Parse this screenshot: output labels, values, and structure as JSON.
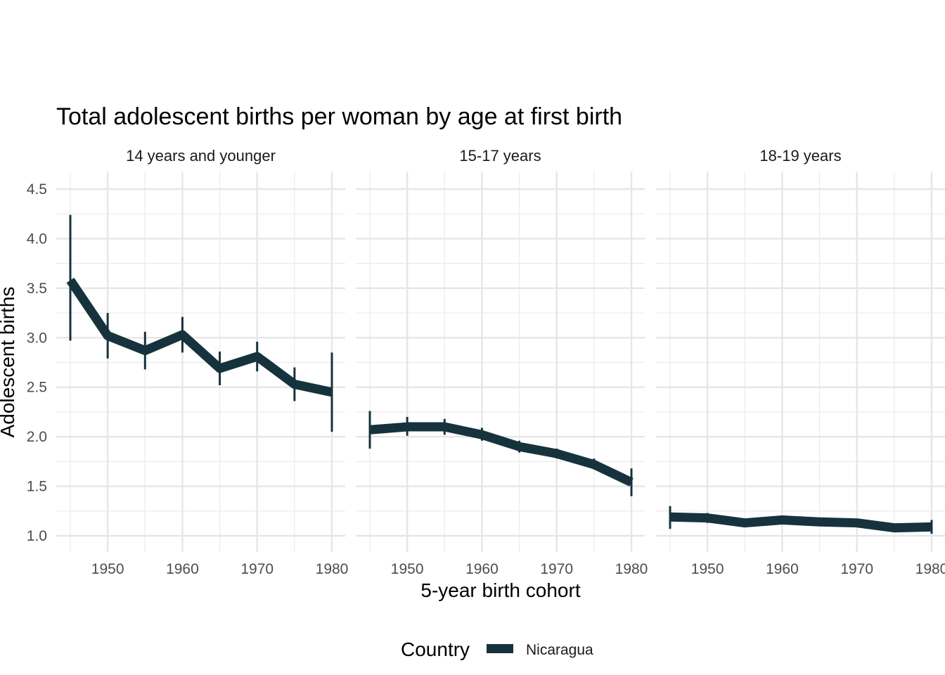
{
  "chart_data": {
    "type": "line",
    "title": "Total adolescent births per woman by age at first birth",
    "xlabel": "5-year birth cohort",
    "ylabel": "Adolescent births",
    "xlim": [
      1945,
      1980
    ],
    "ylim": [
      1.0,
      4.5
    ],
    "x_ticks": [
      "1950",
      "1960",
      "1970",
      "1980"
    ],
    "y_ticks": [
      "1.0",
      "1.5",
      "2.0",
      "2.5",
      "3.0",
      "3.5",
      "4.0",
      "4.5"
    ],
    "grid": true,
    "error_bars": true,
    "legend": {
      "title": "Country",
      "position": "bottom",
      "entries": [
        "Nicaragua"
      ]
    },
    "series_color": "#16333d",
    "x": [
      1945,
      1950,
      1955,
      1960,
      1965,
      1970,
      1975,
      1980
    ],
    "facets": [
      {
        "label": "14 years and younger",
        "series": [
          {
            "name": "Nicaragua",
            "values": [
              3.58,
              3.02,
              2.87,
              3.03,
              2.69,
              2.81,
              2.53,
              2.45
            ],
            "lower": [
              2.97,
              2.79,
              2.68,
              2.85,
              2.52,
              2.66,
              2.36,
              2.05
            ],
            "upper": [
              4.24,
              3.25,
              3.06,
              3.21,
              2.86,
              2.96,
              2.7,
              2.85
            ]
          }
        ]
      },
      {
        "label": "15-17 years",
        "series": [
          {
            "name": "Nicaragua",
            "values": [
              2.07,
              2.1,
              2.1,
              2.02,
              1.9,
              1.83,
              1.72,
              1.54
            ],
            "lower": [
              1.88,
              2.01,
              2.02,
              1.96,
              1.84,
              1.78,
              1.67,
              1.4
            ],
            "upper": [
              2.26,
              2.2,
              2.18,
              2.09,
              1.96,
              1.88,
              1.78,
              1.68
            ]
          }
        ]
      },
      {
        "label": "18-19 years",
        "series": [
          {
            "name": "Nicaragua",
            "values": [
              1.19,
              1.18,
              1.13,
              1.16,
              1.14,
              1.13,
              1.08,
              1.09
            ],
            "lower": [
              1.07,
              1.13,
              1.11,
              1.14,
              1.12,
              1.11,
              1.06,
              1.02
            ],
            "upper": [
              1.3,
              1.23,
              1.15,
              1.18,
              1.16,
              1.15,
              1.1,
              1.16
            ]
          }
        ]
      }
    ]
  }
}
